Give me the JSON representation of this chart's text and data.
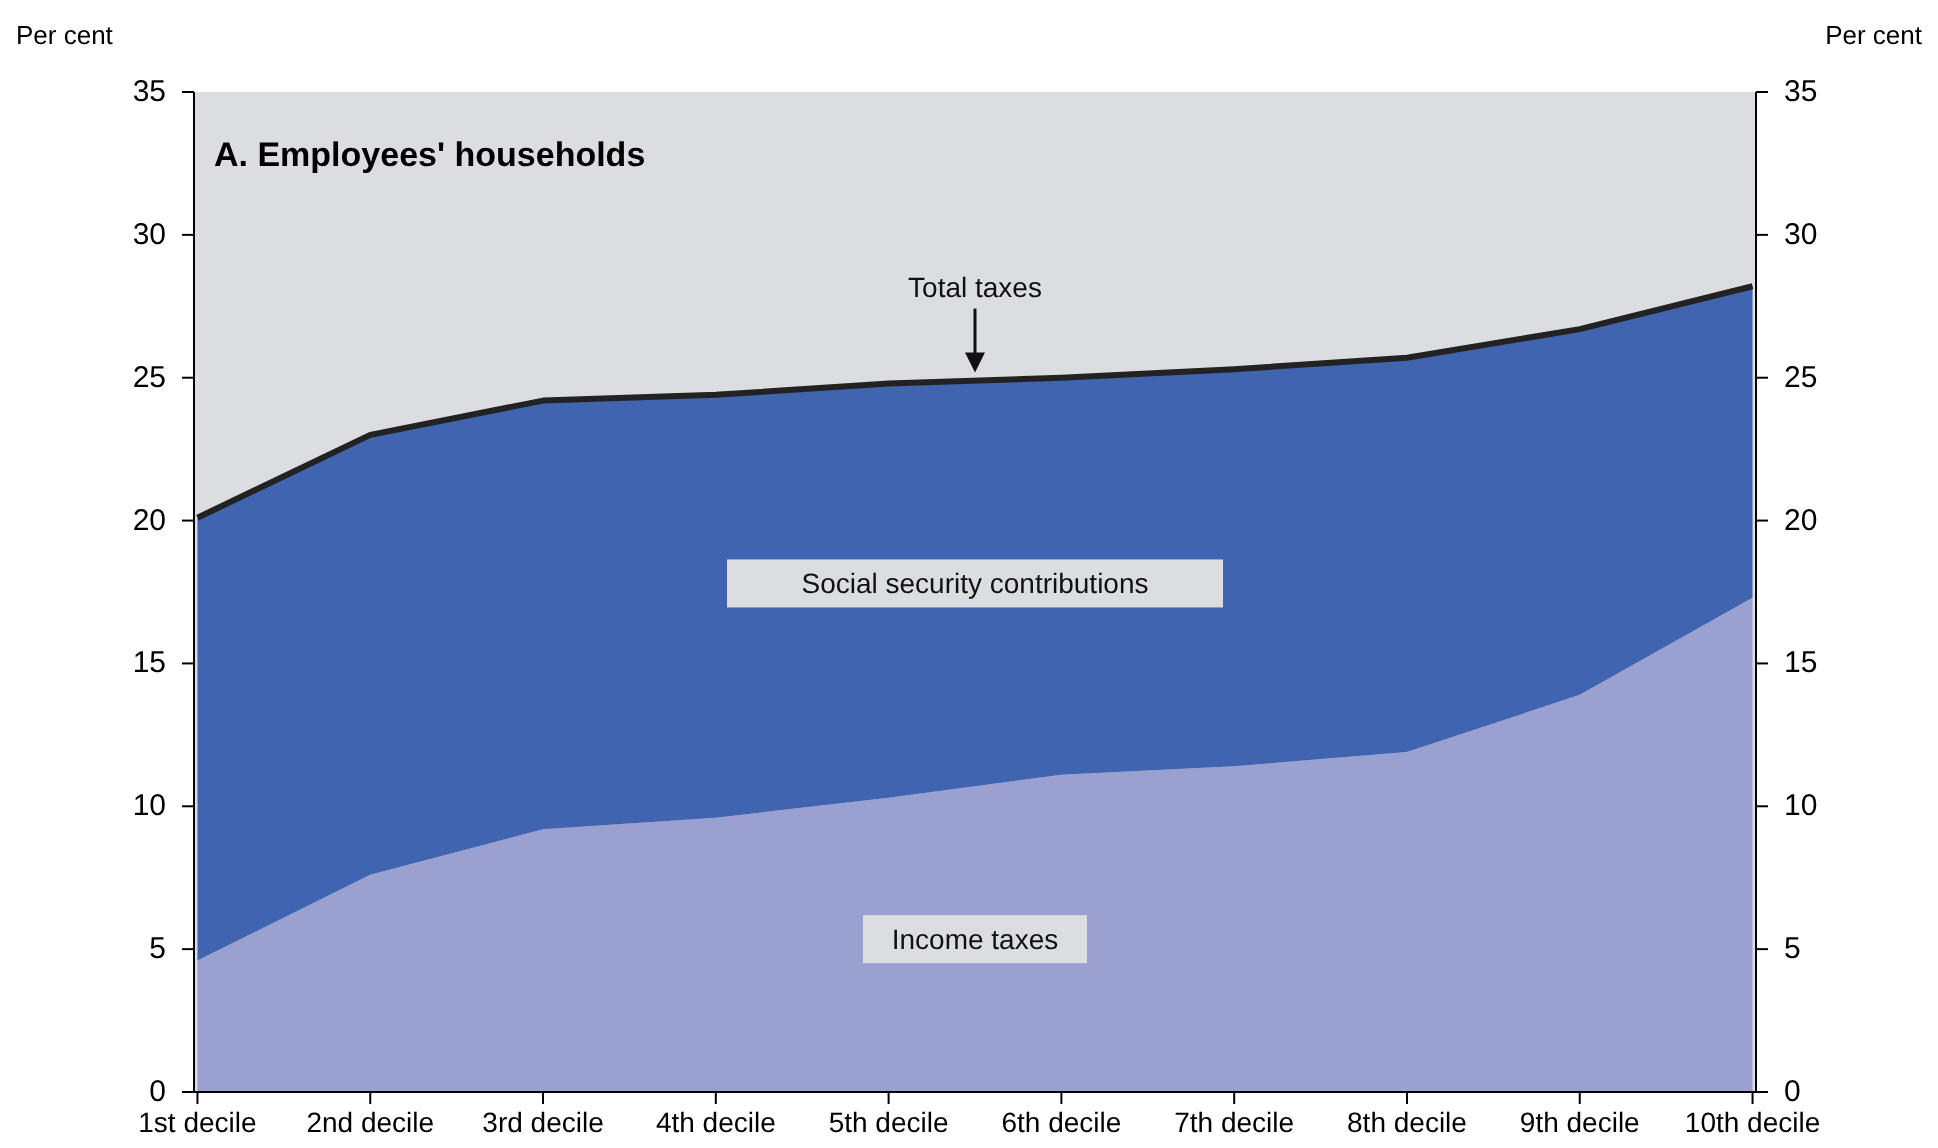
{
  "chart_data": {
    "type": "area",
    "title": "A.  Employees' households",
    "ylabel": "Per cent",
    "y2label": "Per cent",
    "annotations": [
      "Total taxes"
    ],
    "categories": [
      "1st decile",
      "2nd decile",
      "3rd decile",
      "4th decile",
      "5th decile",
      "6th decile",
      "7th decile",
      "8th decile",
      "9th decile",
      "10th decile"
    ],
    "stacked": true,
    "legend": false,
    "grid": false,
    "ylim": [
      0,
      35
    ],
    "yticks": [
      0,
      5,
      10,
      15,
      20,
      25,
      30,
      35
    ],
    "y2lim": [
      0,
      35
    ],
    "y2ticks": [
      0,
      5,
      10,
      15,
      20,
      25,
      30,
      35
    ],
    "series": [
      {
        "name": "Income taxes",
        "color": "#9aa1d1",
        "values": [
          4.6,
          7.6,
          9.2,
          9.6,
          10.3,
          11.1,
          11.4,
          11.9,
          13.9,
          17.3
        ]
      },
      {
        "name": "Social security contributions",
        "color": "#4164b0",
        "values": [
          15.5,
          15.4,
          15.0,
          14.8,
          14.5,
          13.9,
          13.9,
          13.8,
          12.8,
          10.9
        ]
      }
    ]
  }
}
